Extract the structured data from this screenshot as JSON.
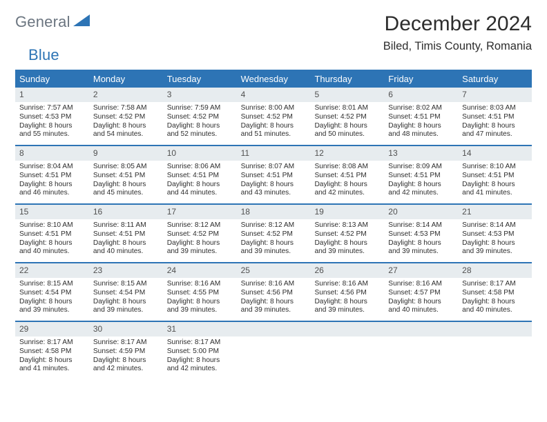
{
  "logo": {
    "word1": "General",
    "word2": "Blue",
    "color_gray": "#6b7580",
    "color_blue": "#2d74b5"
  },
  "title": "December 2024",
  "location": "Biled, Timis County, Romania",
  "colors": {
    "header_bg": "#2d74b5",
    "header_text": "#ffffff",
    "daynum_bg": "#e7ecef",
    "border": "#2d74b5",
    "text": "#2d2d2d"
  },
  "day_headers": [
    "Sunday",
    "Monday",
    "Tuesday",
    "Wednesday",
    "Thursday",
    "Friday",
    "Saturday"
  ],
  "weeks": [
    [
      {
        "n": "1",
        "sr": "Sunrise: 7:57 AM",
        "ss": "Sunset: 4:53 PM",
        "dl1": "Daylight: 8 hours",
        "dl2": "and 55 minutes."
      },
      {
        "n": "2",
        "sr": "Sunrise: 7:58 AM",
        "ss": "Sunset: 4:52 PM",
        "dl1": "Daylight: 8 hours",
        "dl2": "and 54 minutes."
      },
      {
        "n": "3",
        "sr": "Sunrise: 7:59 AM",
        "ss": "Sunset: 4:52 PM",
        "dl1": "Daylight: 8 hours",
        "dl2": "and 52 minutes."
      },
      {
        "n": "4",
        "sr": "Sunrise: 8:00 AM",
        "ss": "Sunset: 4:52 PM",
        "dl1": "Daylight: 8 hours",
        "dl2": "and 51 minutes."
      },
      {
        "n": "5",
        "sr": "Sunrise: 8:01 AM",
        "ss": "Sunset: 4:52 PM",
        "dl1": "Daylight: 8 hours",
        "dl2": "and 50 minutes."
      },
      {
        "n": "6",
        "sr": "Sunrise: 8:02 AM",
        "ss": "Sunset: 4:51 PM",
        "dl1": "Daylight: 8 hours",
        "dl2": "and 48 minutes."
      },
      {
        "n": "7",
        "sr": "Sunrise: 8:03 AM",
        "ss": "Sunset: 4:51 PM",
        "dl1": "Daylight: 8 hours",
        "dl2": "and 47 minutes."
      }
    ],
    [
      {
        "n": "8",
        "sr": "Sunrise: 8:04 AM",
        "ss": "Sunset: 4:51 PM",
        "dl1": "Daylight: 8 hours",
        "dl2": "and 46 minutes."
      },
      {
        "n": "9",
        "sr": "Sunrise: 8:05 AM",
        "ss": "Sunset: 4:51 PM",
        "dl1": "Daylight: 8 hours",
        "dl2": "and 45 minutes."
      },
      {
        "n": "10",
        "sr": "Sunrise: 8:06 AM",
        "ss": "Sunset: 4:51 PM",
        "dl1": "Daylight: 8 hours",
        "dl2": "and 44 minutes."
      },
      {
        "n": "11",
        "sr": "Sunrise: 8:07 AM",
        "ss": "Sunset: 4:51 PM",
        "dl1": "Daylight: 8 hours",
        "dl2": "and 43 minutes."
      },
      {
        "n": "12",
        "sr": "Sunrise: 8:08 AM",
        "ss": "Sunset: 4:51 PM",
        "dl1": "Daylight: 8 hours",
        "dl2": "and 42 minutes."
      },
      {
        "n": "13",
        "sr": "Sunrise: 8:09 AM",
        "ss": "Sunset: 4:51 PM",
        "dl1": "Daylight: 8 hours",
        "dl2": "and 42 minutes."
      },
      {
        "n": "14",
        "sr": "Sunrise: 8:10 AM",
        "ss": "Sunset: 4:51 PM",
        "dl1": "Daylight: 8 hours",
        "dl2": "and 41 minutes."
      }
    ],
    [
      {
        "n": "15",
        "sr": "Sunrise: 8:10 AM",
        "ss": "Sunset: 4:51 PM",
        "dl1": "Daylight: 8 hours",
        "dl2": "and 40 minutes."
      },
      {
        "n": "16",
        "sr": "Sunrise: 8:11 AM",
        "ss": "Sunset: 4:51 PM",
        "dl1": "Daylight: 8 hours",
        "dl2": "and 40 minutes."
      },
      {
        "n": "17",
        "sr": "Sunrise: 8:12 AM",
        "ss": "Sunset: 4:52 PM",
        "dl1": "Daylight: 8 hours",
        "dl2": "and 39 minutes."
      },
      {
        "n": "18",
        "sr": "Sunrise: 8:12 AM",
        "ss": "Sunset: 4:52 PM",
        "dl1": "Daylight: 8 hours",
        "dl2": "and 39 minutes."
      },
      {
        "n": "19",
        "sr": "Sunrise: 8:13 AM",
        "ss": "Sunset: 4:52 PM",
        "dl1": "Daylight: 8 hours",
        "dl2": "and 39 minutes."
      },
      {
        "n": "20",
        "sr": "Sunrise: 8:14 AM",
        "ss": "Sunset: 4:53 PM",
        "dl1": "Daylight: 8 hours",
        "dl2": "and 39 minutes."
      },
      {
        "n": "21",
        "sr": "Sunrise: 8:14 AM",
        "ss": "Sunset: 4:53 PM",
        "dl1": "Daylight: 8 hours",
        "dl2": "and 39 minutes."
      }
    ],
    [
      {
        "n": "22",
        "sr": "Sunrise: 8:15 AM",
        "ss": "Sunset: 4:54 PM",
        "dl1": "Daylight: 8 hours",
        "dl2": "and 39 minutes."
      },
      {
        "n": "23",
        "sr": "Sunrise: 8:15 AM",
        "ss": "Sunset: 4:54 PM",
        "dl1": "Daylight: 8 hours",
        "dl2": "and 39 minutes."
      },
      {
        "n": "24",
        "sr": "Sunrise: 8:16 AM",
        "ss": "Sunset: 4:55 PM",
        "dl1": "Daylight: 8 hours",
        "dl2": "and 39 minutes."
      },
      {
        "n": "25",
        "sr": "Sunrise: 8:16 AM",
        "ss": "Sunset: 4:56 PM",
        "dl1": "Daylight: 8 hours",
        "dl2": "and 39 minutes."
      },
      {
        "n": "26",
        "sr": "Sunrise: 8:16 AM",
        "ss": "Sunset: 4:56 PM",
        "dl1": "Daylight: 8 hours",
        "dl2": "and 39 minutes."
      },
      {
        "n": "27",
        "sr": "Sunrise: 8:16 AM",
        "ss": "Sunset: 4:57 PM",
        "dl1": "Daylight: 8 hours",
        "dl2": "and 40 minutes."
      },
      {
        "n": "28",
        "sr": "Sunrise: 8:17 AM",
        "ss": "Sunset: 4:58 PM",
        "dl1": "Daylight: 8 hours",
        "dl2": "and 40 minutes."
      }
    ],
    [
      {
        "n": "29",
        "sr": "Sunrise: 8:17 AM",
        "ss": "Sunset: 4:58 PM",
        "dl1": "Daylight: 8 hours",
        "dl2": "and 41 minutes."
      },
      {
        "n": "30",
        "sr": "Sunrise: 8:17 AM",
        "ss": "Sunset: 4:59 PM",
        "dl1": "Daylight: 8 hours",
        "dl2": "and 42 minutes."
      },
      {
        "n": "31",
        "sr": "Sunrise: 8:17 AM",
        "ss": "Sunset: 5:00 PM",
        "dl1": "Daylight: 8 hours",
        "dl2": "and 42 minutes."
      },
      {
        "empty": true
      },
      {
        "empty": true
      },
      {
        "empty": true
      },
      {
        "empty": true
      }
    ]
  ]
}
